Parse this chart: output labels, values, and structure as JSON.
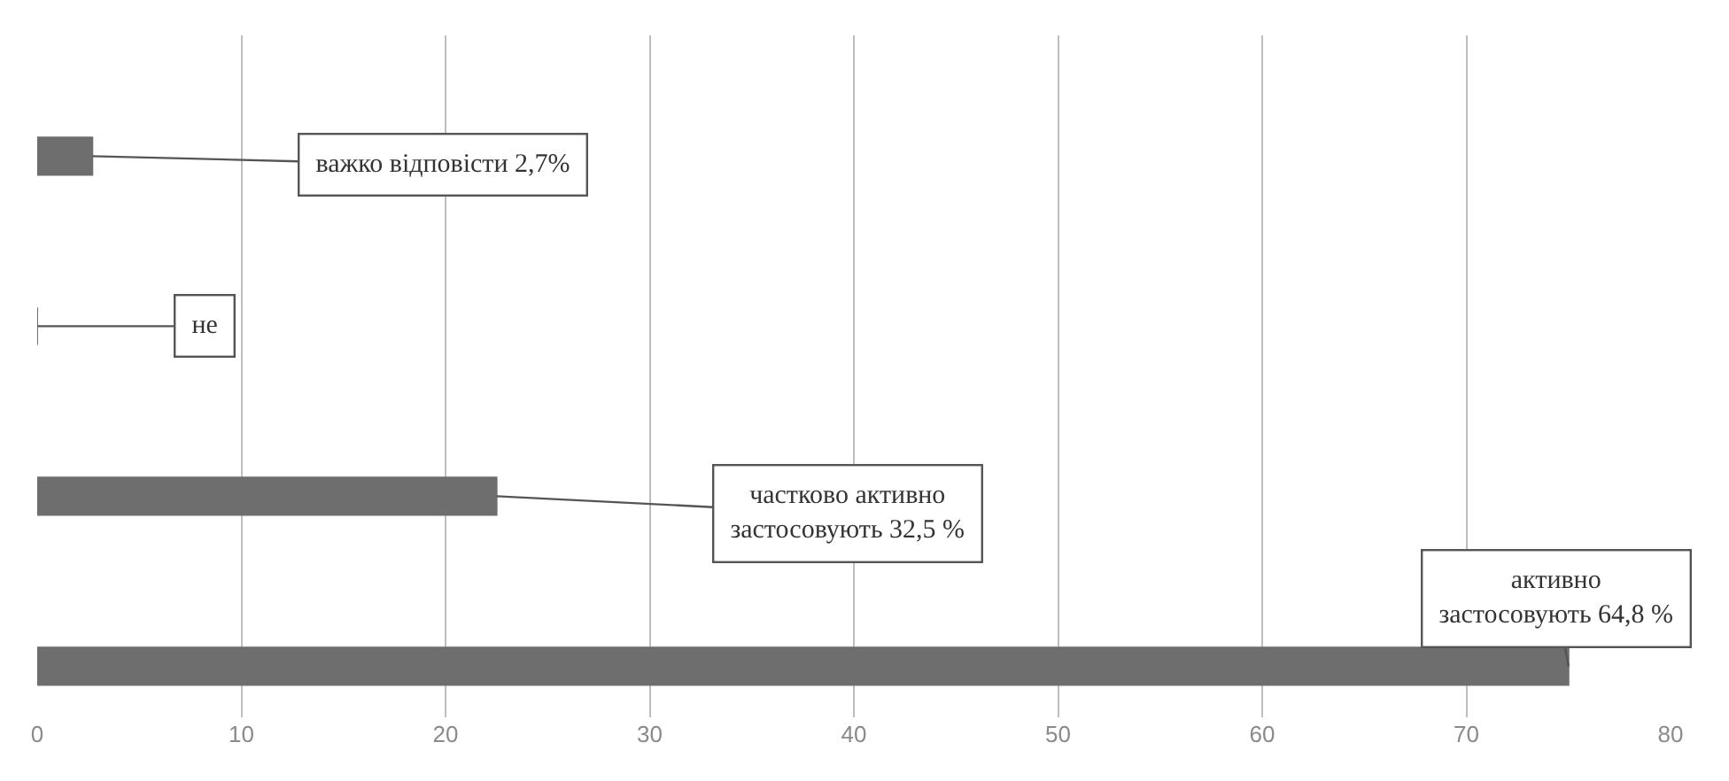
{
  "chart_data": {
    "type": "bar",
    "orientation": "horizontal",
    "categories": [
      null,
      null,
      null,
      null
    ],
    "values": [
      2.7,
      0,
      22.5,
      75
    ],
    "color": "#6e6e6e",
    "xlim": [
      0,
      80
    ],
    "xticks": [
      0,
      10,
      20,
      30,
      40,
      50,
      60,
      70,
      80
    ],
    "grid": "x",
    "tick_labels": "x",
    "annotations": [
      "важко відповісти 2,7%",
      "не",
      "частково активно\nзастосовують 32,5 %",
      "активно\nзастосовують 64,8 %"
    ]
  }
}
